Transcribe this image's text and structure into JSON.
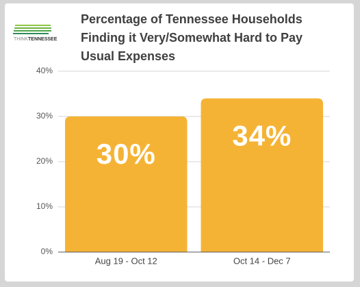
{
  "logo": {
    "prefix": "THINK",
    "name": "TENNESSEE"
  },
  "chart_data": {
    "type": "bar",
    "title": "Percentage of Tennessee Households Finding it Very/Somewhat Hard to Pay Usual Expenses",
    "categories": [
      "Aug 19 - Oct 12",
      "Oct 14 - Dec 7"
    ],
    "values": [
      30,
      34
    ],
    "value_labels": [
      "30%",
      "34%"
    ],
    "color": "#f5b335",
    "ylim": [
      0,
      40
    ],
    "yticks": [
      {
        "value": 0,
        "label": "0%"
      },
      {
        "value": 10,
        "label": "10%"
      },
      {
        "value": 20,
        "label": "20%"
      },
      {
        "value": 30,
        "label": "30%"
      },
      {
        "value": 40,
        "label": "40%"
      }
    ],
    "grid": true
  }
}
